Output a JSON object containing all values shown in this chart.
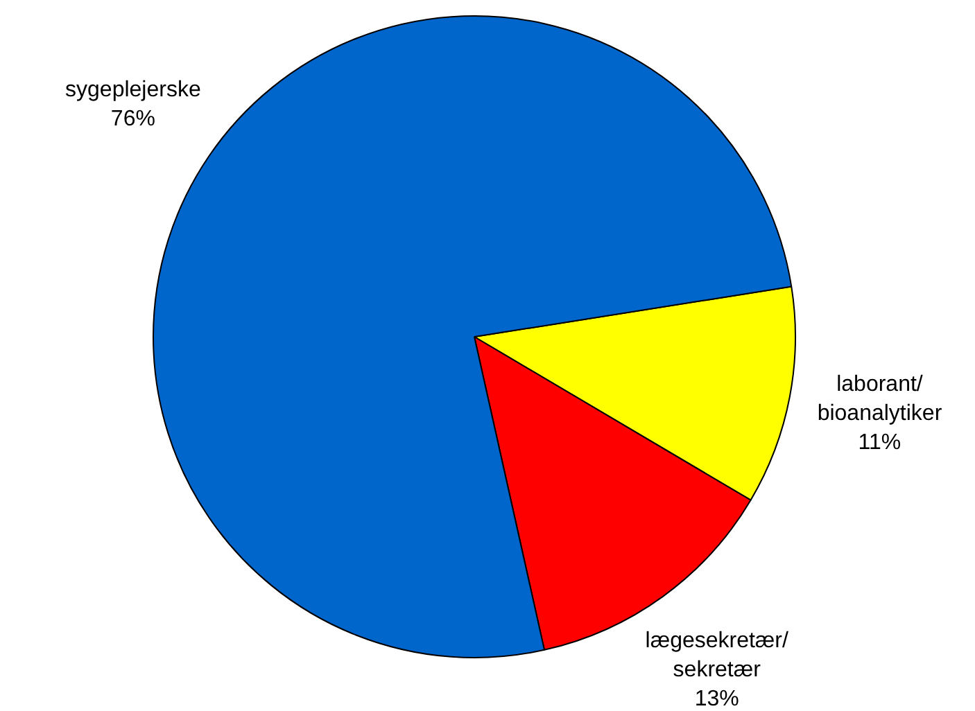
{
  "chart_data": {
    "type": "pie",
    "categories": [
      "laborant/bioanalytiker",
      "lægesekretær/sekretær",
      "sygeplejerske"
    ],
    "values": [
      11,
      13,
      76
    ],
    "value_labels": [
      "11%",
      "13%",
      "76%"
    ],
    "colors": [
      "#ffff00",
      "#ff0000",
      "#0066cc"
    ],
    "legend": false
  }
}
